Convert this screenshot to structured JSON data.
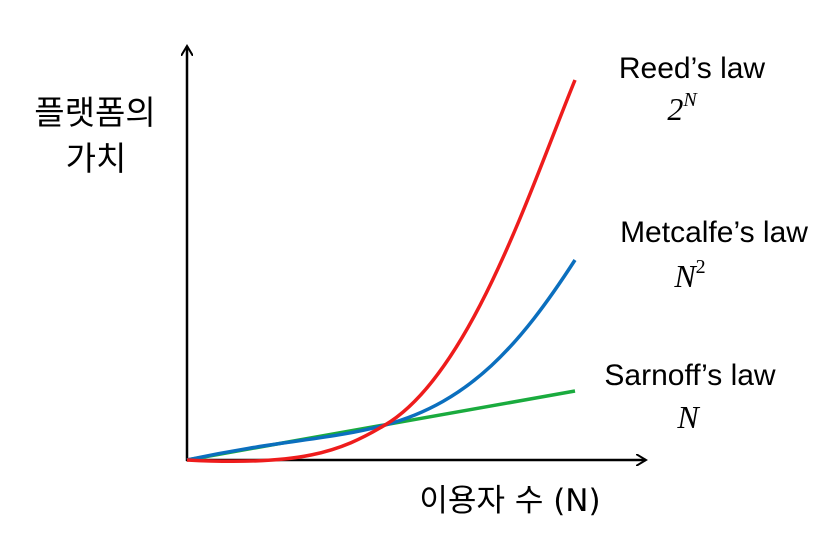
{
  "y_axis_label": [
    "플랫폼의",
    "가치"
  ],
  "x_axis_label": "이용자 수 (N)",
  "laws": [
    {
      "name": "Reed’s law",
      "formula": {
        "base": "2",
        "exponent": "N"
      }
    },
    {
      "name": "Metcalfe’s law",
      "formula": {
        "base": "N",
        "exponent": "2"
      }
    },
    {
      "name": "Sarnoff’s law",
      "formula": {
        "base": "N"
      }
    }
  ]
}
